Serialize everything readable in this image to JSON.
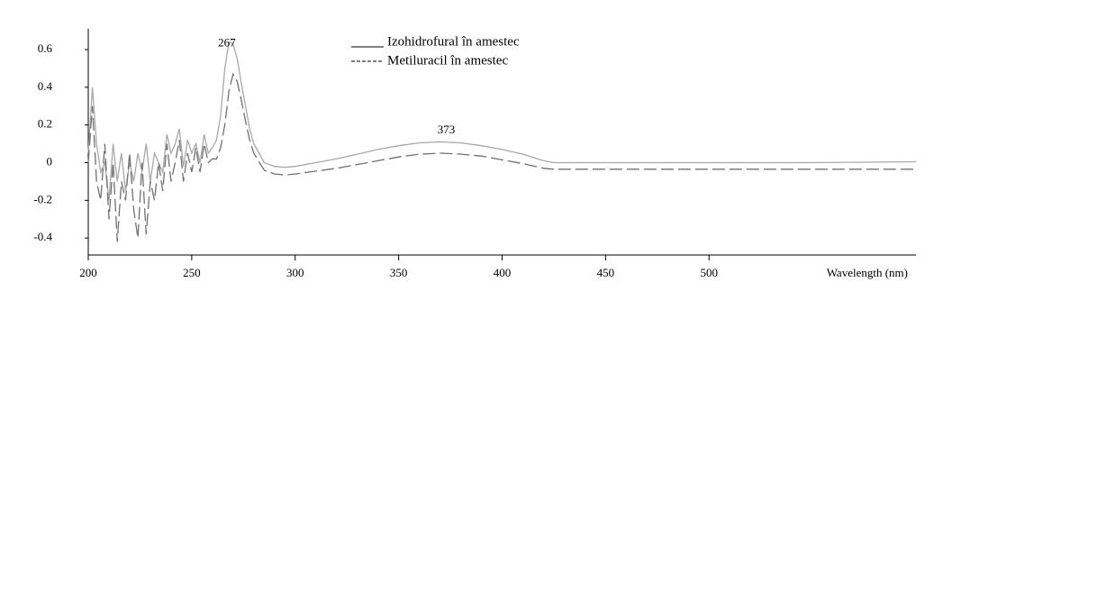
{
  "chart_data": {
    "type": "line",
    "x_label": "Wavelength (nm)",
    "x": [
      200,
      202,
      204,
      206,
      208,
      210,
      212,
      214,
      216,
      218,
      220,
      222,
      224,
      226,
      228,
      230,
      232,
      234,
      236,
      238,
      240,
      242,
      244,
      246,
      248,
      250,
      252,
      254,
      256,
      258,
      260,
      262,
      264,
      266,
      268,
      270,
      272,
      274,
      276,
      278,
      280,
      285,
      290,
      295,
      300,
      310,
      320,
      330,
      340,
      350,
      360,
      370,
      380,
      390,
      400,
      410,
      420,
      425,
      430,
      450,
      500,
      550,
      600
    ],
    "series": [
      {
        "name": "Izohidrofural în amestec",
        "color": "#a8a8a8",
        "dash": false,
        "values": [
          0.05,
          0.4,
          0.1,
          -0.05,
          0.0,
          -0.2,
          0.1,
          -0.1,
          0.05,
          -0.15,
          0.0,
          -0.1,
          0.05,
          -0.05,
          0.1,
          -0.1,
          0.05,
          0.0,
          -0.05,
          0.15,
          0.05,
          0.1,
          0.18,
          -0.02,
          0.12,
          0.05,
          0.1,
          0.0,
          0.15,
          0.05,
          0.08,
          0.12,
          0.25,
          0.5,
          0.64,
          0.63,
          0.55,
          0.42,
          0.3,
          0.18,
          0.1,
          0.0,
          -0.02,
          -0.025,
          -0.02,
          0.0,
          0.02,
          0.045,
          0.07,
          0.09,
          0.105,
          0.11,
          0.105,
          0.09,
          0.07,
          0.045,
          0.01,
          0.0,
          0.0,
          0.0,
          0.0,
          0.0,
          0.005
        ]
      },
      {
        "name": "Metiluracil în amestec",
        "color": "#707070",
        "dash": true,
        "values": [
          0.0,
          0.3,
          -0.1,
          -0.2,
          0.1,
          -0.3,
          0.0,
          -0.42,
          -0.1,
          -0.2,
          0.05,
          -0.25,
          -0.4,
          0.0,
          -0.38,
          -0.1,
          -0.2,
          0.0,
          -0.15,
          0.1,
          -0.1,
          0.0,
          0.12,
          -0.1,
          0.05,
          -0.05,
          0.08,
          -0.05,
          0.1,
          0.0,
          0.02,
          0.02,
          0.08,
          0.2,
          0.38,
          0.47,
          0.43,
          0.33,
          0.22,
          0.12,
          0.05,
          -0.04,
          -0.06,
          -0.065,
          -0.06,
          -0.045,
          -0.03,
          -0.01,
          0.01,
          0.03,
          0.045,
          0.05,
          0.045,
          0.035,
          0.015,
          -0.005,
          -0.03,
          -0.035,
          -0.035,
          -0.035,
          -0.035,
          -0.035,
          -0.035
        ]
      }
    ],
    "annotations": [
      "267",
      "373"
    ],
    "xlim": [
      200,
      600
    ],
    "xticks": [
      200,
      250,
      300,
      350,
      400,
      450,
      500
    ],
    "ylim": [
      -0.49,
      0.71
    ],
    "yticks": [
      -0.4,
      -0.2,
      0,
      0.2,
      0.4,
      0.6
    ],
    "grid": false,
    "legend": "top"
  }
}
